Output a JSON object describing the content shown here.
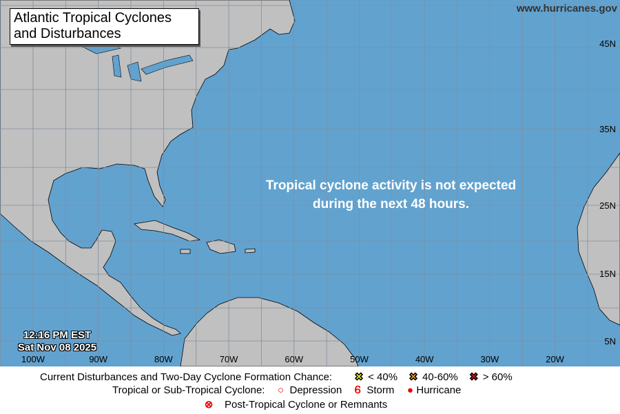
{
  "map": {
    "title_line1": "Atlantic Tropical Cyclones",
    "title_line2": "and Disturbances",
    "website": "www.hurricanes.gov",
    "message_line1": "Tropical cyclone activity is not expected",
    "message_line2": "during the next 48 hours.",
    "time": "12:16 PM EST",
    "date": "Sat Nov 08 2025",
    "longitudes": [
      "100W",
      "90W",
      "80W",
      "70W",
      "60W",
      "50W",
      "40W",
      "30W",
      "20W"
    ],
    "latitudes": [
      "45N",
      "35N",
      "25N",
      "15N",
      "5N"
    ],
    "colors": {
      "ocean": "#62a2cf",
      "land": "#c0c0c0",
      "grid": "#7f8fa0"
    }
  },
  "legend": {
    "disturbances_label": "Current Disturbances and Two-Day Cyclone Formation Chance:",
    "low": {
      "label": "< 40%",
      "color": "#ffff00",
      "icon": "x-marker-icon"
    },
    "medium": {
      "label": "40-60%",
      "color": "#ff9900",
      "icon": "x-marker-icon"
    },
    "high": {
      "label": "> 60%",
      "color": "#ff0000",
      "icon": "x-marker-icon"
    },
    "cyclone_label": "Tropical or Sub-Tropical Cyclone:",
    "depression": "Depression",
    "storm": "Storm",
    "hurricane": "Hurricane",
    "post_tropical": "Post-Tropical Cyclone or Remnants"
  }
}
